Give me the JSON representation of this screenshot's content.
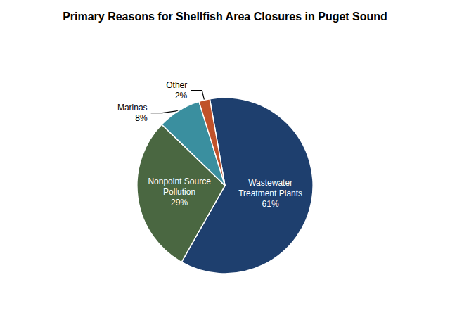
{
  "chart_data": {
    "type": "pie",
    "title": "Primary Reasons for Shellfish Area Closures in Puget Sound",
    "categories": [
      "Wastewater\nTreatment Plants",
      "Nonpoint Source\nPollution",
      "Marinas",
      "Other"
    ],
    "values": [
      61,
      29,
      8,
      2
    ],
    "value_labels": [
      "61%",
      "29%",
      "8%",
      "2%"
    ],
    "colors": [
      "#1e3f6e",
      "#4a6741",
      "#3a8f9f",
      "#c0522a"
    ],
    "data_labels": true
  }
}
